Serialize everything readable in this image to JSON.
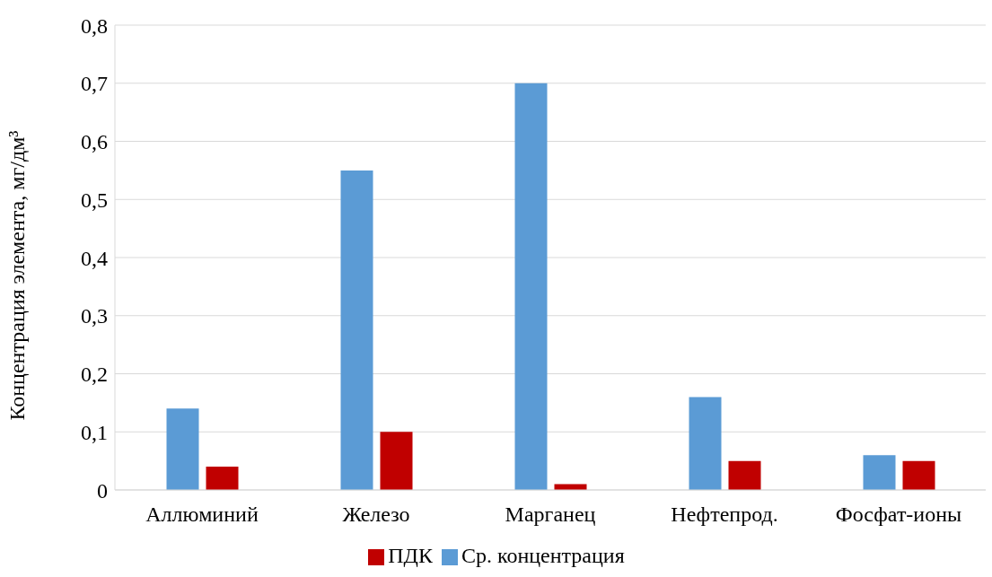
{
  "chart_data": {
    "type": "bar",
    "ylabel": "Концентрация элемента, мг/дм³",
    "categories": [
      "Аллюминий",
      "Железо",
      "Марганец",
      "Нефтепрод.",
      "Фосфат-ионы"
    ],
    "series": [
      {
        "name": "Ср. концентрация",
        "color": "#5b9bd5",
        "values": [
          0.14,
          0.55,
          0.7,
          0.16,
          0.06
        ]
      },
      {
        "name": "ПДК",
        "color": "#c00000",
        "values": [
          0.04,
          0.1,
          0.01,
          0.05,
          0.05
        ]
      }
    ],
    "ylim": [
      0,
      0.8
    ],
    "yticks": [
      0,
      {
        "value": 0.1,
        "label": "0,1"
      },
      {
        "value": 0.2,
        "label": "0,2"
      },
      {
        "value": 0.3,
        "label": "0,3"
      },
      {
        "value": 0.4,
        "label": "0,4"
      },
      {
        "value": 0.5,
        "label": "0,5"
      },
      {
        "value": 0.6,
        "label": "0,6"
      },
      {
        "value": 0.7,
        "label": "0,7"
      },
      {
        "value": 0.8,
        "label": "0,8"
      }
    ],
    "grid": "y",
    "legend": "bottom"
  }
}
